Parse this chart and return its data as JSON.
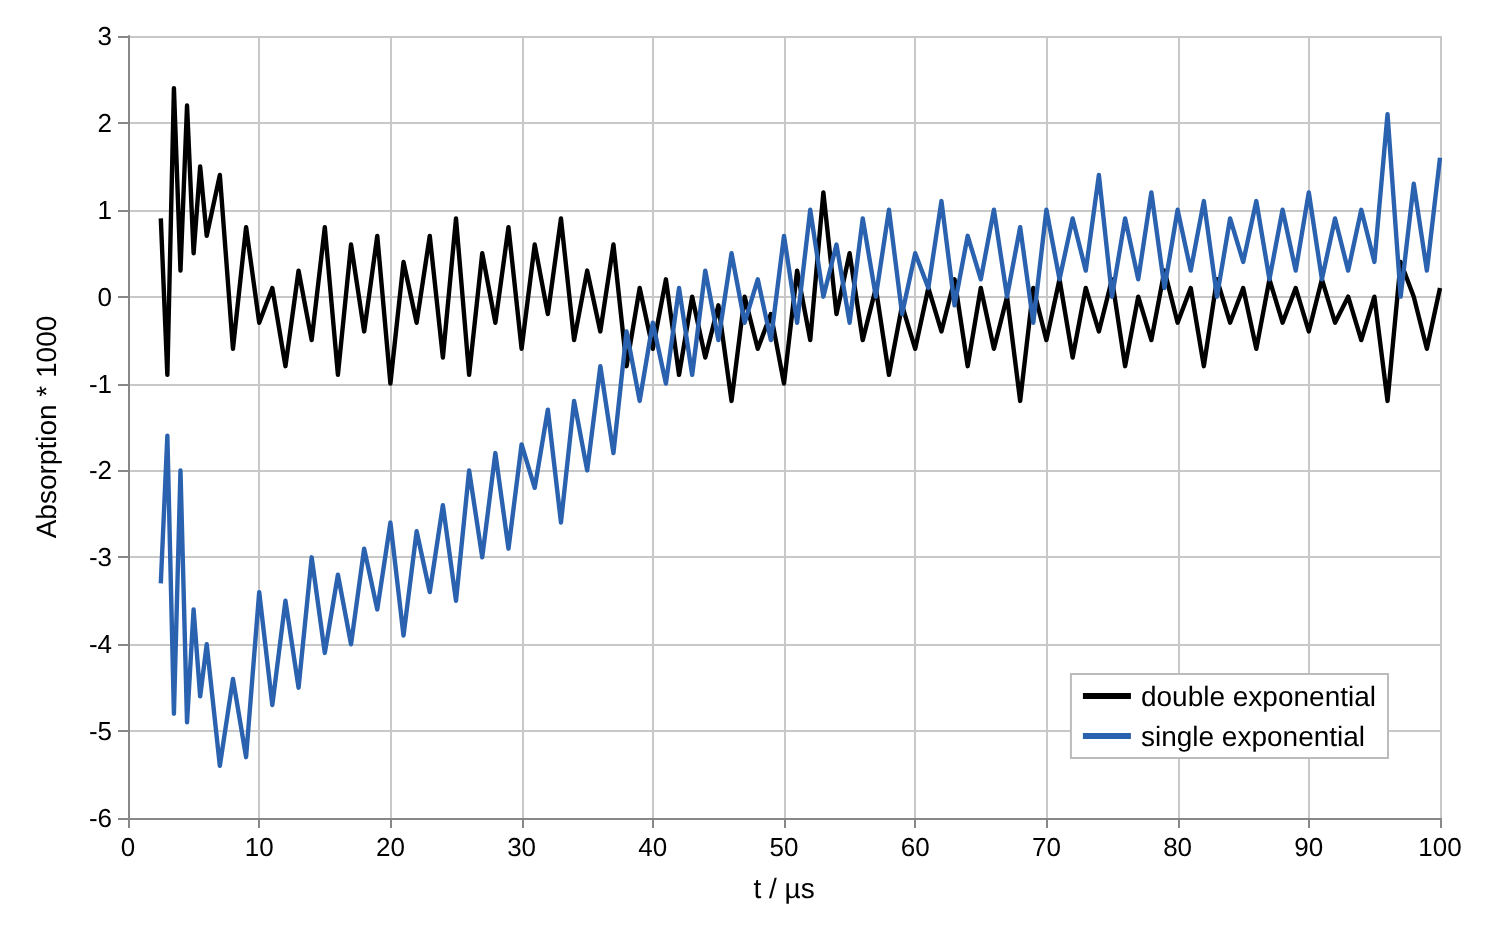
{
  "chart_data": {
    "type": "line",
    "xlabel": "t / µs",
    "ylabel": "Absorption * 1000",
    "x": [
      2.5,
      3,
      3.5,
      4,
      4.5,
      5,
      5.5,
      6,
      7,
      8,
      9,
      10,
      11,
      12,
      13,
      14,
      15,
      16,
      17,
      18,
      19,
      20,
      21,
      22,
      23,
      24,
      25,
      26,
      27,
      28,
      29,
      30,
      31,
      32,
      33,
      34,
      35,
      36,
      37,
      38,
      39,
      40,
      41,
      42,
      43,
      44,
      45,
      46,
      47,
      48,
      49,
      50,
      51,
      52,
      53,
      54,
      55,
      56,
      57,
      58,
      59,
      60,
      61,
      62,
      63,
      64,
      65,
      66,
      67,
      68,
      69,
      70,
      71,
      72,
      73,
      74,
      75,
      76,
      77,
      78,
      79,
      80,
      81,
      82,
      83,
      84,
      85,
      86,
      87,
      88,
      89,
      90,
      91,
      92,
      93,
      94,
      95,
      96,
      97,
      98,
      99,
      100
    ],
    "series": [
      {
        "name": "double exponential",
        "color": "#000000",
        "values": [
          0.9,
          -0.9,
          2.4,
          0.3,
          2.2,
          0.5,
          1.5,
          0.7,
          1.4,
          -0.6,
          0.8,
          -0.3,
          0.1,
          -0.8,
          0.3,
          -0.5,
          0.8,
          -0.9,
          0.6,
          -0.4,
          0.7,
          -1.0,
          0.4,
          -0.3,
          0.7,
          -0.7,
          0.9,
          -0.9,
          0.5,
          -0.3,
          0.8,
          -0.6,
          0.6,
          -0.2,
          0.9,
          -0.5,
          0.3,
          -0.4,
          0.6,
          -0.8,
          0.1,
          -0.6,
          0.2,
          -0.9,
          0.0,
          -0.7,
          -0.1,
          -1.2,
          0.0,
          -0.6,
          -0.2,
          -1.0,
          0.3,
          -0.5,
          1.2,
          -0.2,
          0.5,
          -0.5,
          0.1,
          -0.9,
          -0.1,
          -0.6,
          0.1,
          -0.4,
          0.2,
          -0.8,
          0.1,
          -0.6,
          0.0,
          -1.2,
          0.1,
          -0.5,
          0.2,
          -0.7,
          0.1,
          -0.4,
          0.2,
          -0.8,
          0.0,
          -0.5,
          0.3,
          -0.3,
          0.1,
          -0.8,
          0.2,
          -0.3,
          0.1,
          -0.6,
          0.2,
          -0.3,
          0.1,
          -0.4,
          0.2,
          -0.3,
          0.0,
          -0.5,
          0.0,
          -1.2,
          0.4,
          0.0,
          -0.6,
          0.1
        ]
      },
      {
        "name": "single exponential",
        "color": "#2a62b0",
        "values": [
          -3.3,
          -1.6,
          -4.8,
          -2.0,
          -4.9,
          -3.6,
          -4.6,
          -4.0,
          -5.4,
          -4.4,
          -5.3,
          -3.4,
          -4.7,
          -3.5,
          -4.5,
          -3.0,
          -4.1,
          -3.2,
          -4.0,
          -2.9,
          -3.6,
          -2.6,
          -3.9,
          -2.7,
          -3.4,
          -2.4,
          -3.5,
          -2.0,
          -3.0,
          -1.8,
          -2.9,
          -1.7,
          -2.2,
          -1.3,
          -2.6,
          -1.2,
          -2.0,
          -0.8,
          -1.8,
          -0.4,
          -1.2,
          -0.3,
          -1.0,
          0.1,
          -0.9,
          0.3,
          -0.5,
          0.5,
          -0.3,
          0.2,
          -0.5,
          0.7,
          -0.3,
          1.0,
          0.0,
          0.6,
          -0.3,
          0.9,
          0.0,
          1.0,
          -0.2,
          0.5,
          0.1,
          1.1,
          -0.1,
          0.7,
          0.2,
          1.0,
          0.0,
          0.8,
          -0.3,
          1.0,
          0.2,
          0.9,
          0.3,
          1.4,
          0.0,
          0.9,
          0.2,
          1.2,
          0.1,
          1.0,
          0.3,
          1.1,
          0.0,
          0.9,
          0.4,
          1.1,
          0.2,
          1.0,
          0.3,
          1.2,
          0.2,
          0.9,
          0.3,
          1.0,
          0.4,
          2.1,
          0.0,
          1.3,
          0.3,
          1.6
        ]
      }
    ],
    "xlim": [
      0,
      100
    ],
    "xticks": [
      0,
      10,
      20,
      30,
      40,
      50,
      60,
      70,
      80,
      90,
      100
    ],
    "ylim": [
      -6,
      3
    ],
    "yticks": [
      -6,
      -5,
      -4,
      -3,
      -2,
      -1,
      0,
      1,
      2,
      3
    ],
    "grid": true,
    "legend": "bottom right",
    "marker": "none",
    "line_style": "solid"
  }
}
